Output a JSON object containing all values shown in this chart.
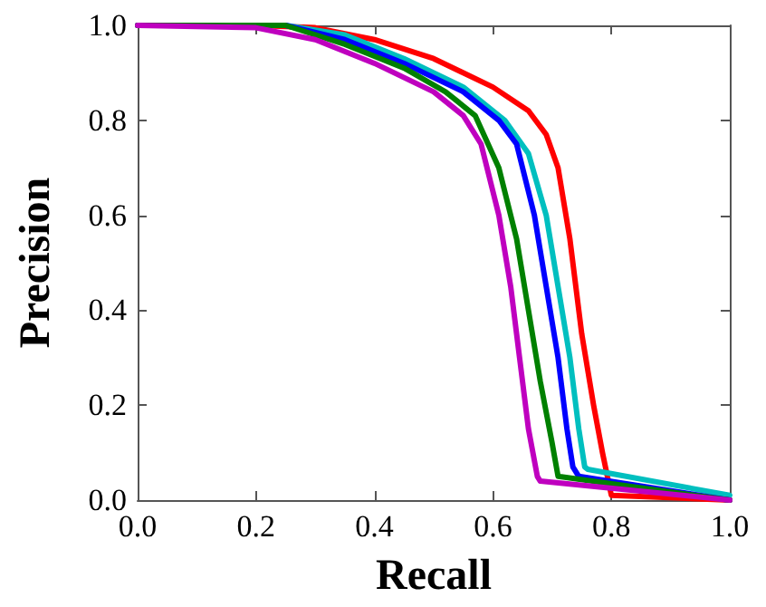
{
  "chart_data": {
    "type": "line",
    "xlabel": "Recall",
    "ylabel": "Precision",
    "xlim": [
      0,
      1
    ],
    "ylim": [
      0,
      1
    ],
    "xticks": [
      {
        "value": 0,
        "label": "0.0"
      },
      0.2,
      0.4,
      0.6,
      0.8,
      {
        "value": 1,
        "label": "1.0"
      }
    ],
    "yticks": [
      {
        "value": 0,
        "label": "0.0"
      },
      0.2,
      0.4,
      0.6,
      0.8,
      {
        "value": 1,
        "label": "1.0"
      }
    ],
    "grid": false,
    "marker": "none",
    "line_style": "solid",
    "series": [
      {
        "color": "#ff0000",
        "x": [
          0,
          0.2,
          0.3,
          0.4,
          0.5,
          0.6,
          0.66,
          0.69,
          0.71,
          0.73,
          0.75,
          0.77,
          0.785,
          0.795,
          0.8,
          1
        ],
        "values": [
          1,
          1,
          0.995,
          0.97,
          0.93,
          0.87,
          0.82,
          0.77,
          0.7,
          0.55,
          0.35,
          0.2,
          0.1,
          0.04,
          0.01,
          0
        ]
      },
      {
        "color": "#00bfbf",
        "x": [
          0,
          0.25,
          0.35,
          0.45,
          0.55,
          0.62,
          0.66,
          0.69,
          0.71,
          0.73,
          0.745,
          0.755,
          0.76,
          1
        ],
        "values": [
          1,
          1,
          0.98,
          0.93,
          0.87,
          0.8,
          0.73,
          0.6,
          0.45,
          0.3,
          0.15,
          0.07,
          0.065,
          0.01
        ]
      },
      {
        "color": "#0000ff",
        "x": [
          0,
          0.25,
          0.35,
          0.45,
          0.55,
          0.61,
          0.64,
          0.67,
          0.69,
          0.71,
          0.725,
          0.735,
          0.745,
          1
        ],
        "values": [
          1,
          1,
          0.97,
          0.92,
          0.86,
          0.8,
          0.75,
          0.6,
          0.45,
          0.3,
          0.15,
          0.07,
          0.05,
          0
        ]
      },
      {
        "color": "#008000",
        "x": [
          0,
          0.25,
          0.35,
          0.45,
          0.52,
          0.57,
          0.61,
          0.64,
          0.66,
          0.68,
          0.7,
          0.71,
          1
        ],
        "values": [
          1,
          1,
          0.96,
          0.91,
          0.86,
          0.81,
          0.7,
          0.55,
          0.4,
          0.25,
          0.12,
          0.05,
          0
        ]
      },
      {
        "color": "#bf00bf",
        "x": [
          0,
          0.2,
          0.3,
          0.4,
          0.5,
          0.55,
          0.58,
          0.61,
          0.63,
          0.645,
          0.66,
          0.675,
          0.68,
          1
        ],
        "values": [
          1,
          0.995,
          0.97,
          0.92,
          0.86,
          0.81,
          0.75,
          0.6,
          0.45,
          0.3,
          0.15,
          0.05,
          0.04,
          0
        ]
      }
    ]
  }
}
